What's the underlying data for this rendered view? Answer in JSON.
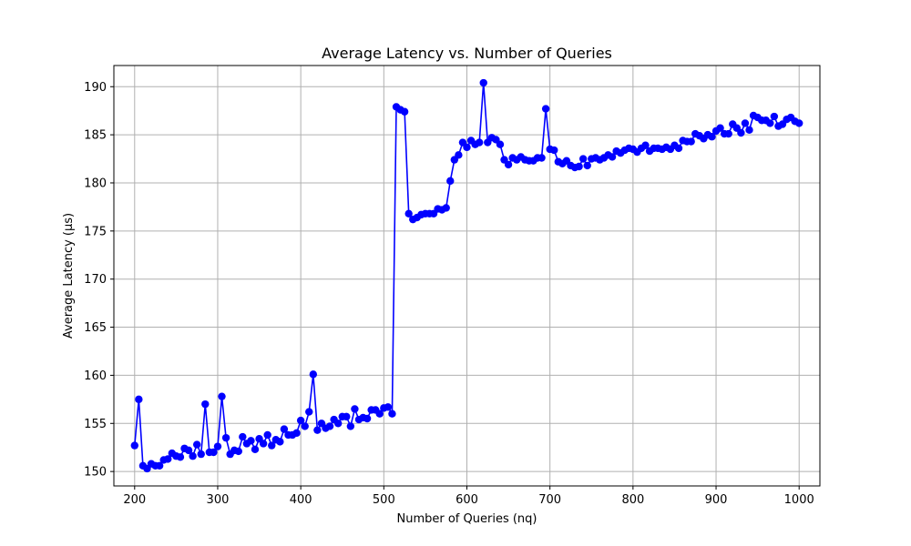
{
  "chart_data": {
    "type": "line",
    "title": "Average Latency vs. Number of Queries",
    "xlabel": "Number of Queries (nq)",
    "ylabel": "Average Latency (µs)",
    "xlim": [
      175,
      1025
    ],
    "ylim": [
      148.5,
      192.2
    ],
    "xticks": [
      200,
      300,
      400,
      500,
      600,
      700,
      800,
      900,
      1000
    ],
    "yticks": [
      150,
      155,
      160,
      165,
      170,
      175,
      180,
      185,
      190
    ],
    "grid": true,
    "series": [
      {
        "name": "Average Latency",
        "color": "#0000ff",
        "marker": "circle",
        "x": [
          200,
          205,
          210,
          215,
          220,
          225,
          230,
          235,
          240,
          245,
          250,
          255,
          260,
          265,
          270,
          275,
          280,
          285,
          290,
          295,
          300,
          305,
          310,
          315,
          320,
          325,
          330,
          335,
          340,
          345,
          350,
          355,
          360,
          365,
          370,
          375,
          380,
          385,
          390,
          395,
          400,
          405,
          410,
          415,
          420,
          425,
          430,
          435,
          440,
          445,
          450,
          455,
          460,
          465,
          470,
          475,
          480,
          485,
          490,
          495,
          500,
          505,
          510,
          515,
          520,
          525,
          530,
          535,
          540,
          545,
          550,
          555,
          560,
          565,
          570,
          575,
          580,
          585,
          590,
          595,
          600,
          605,
          610,
          615,
          620,
          625,
          630,
          635,
          640,
          645,
          650,
          655,
          660,
          665,
          670,
          675,
          680,
          685,
          690,
          695,
          700,
          705,
          710,
          715,
          720,
          725,
          730,
          735,
          740,
          745,
          750,
          755,
          760,
          765,
          770,
          775,
          780,
          785,
          790,
          795,
          800,
          805,
          810,
          815,
          820,
          825,
          830,
          835,
          840,
          845,
          850,
          855,
          860,
          865,
          870,
          875,
          880,
          885,
          890,
          895,
          900,
          905,
          910,
          915,
          920,
          925,
          930,
          935,
          940,
          945,
          950,
          955,
          960,
          965,
          970,
          975,
          980,
          985,
          990,
          995,
          1000
        ],
        "y": [
          152.7,
          157.5,
          150.6,
          150.3,
          150.8,
          150.6,
          150.6,
          151.2,
          151.3,
          151.9,
          151.6,
          151.5,
          152.4,
          152.2,
          151.6,
          152.8,
          151.8,
          157.0,
          152.0,
          152.0,
          152.6,
          157.8,
          153.5,
          151.8,
          152.2,
          152.1,
          153.6,
          152.9,
          153.2,
          152.3,
          153.4,
          152.9,
          153.8,
          152.7,
          153.3,
          153.1,
          154.4,
          153.8,
          153.8,
          154.0,
          155.3,
          154.7,
          156.2,
          160.1,
          154.3,
          155.0,
          154.5,
          154.7,
          155.4,
          155.0,
          155.7,
          155.7,
          154.7,
          156.5,
          155.4,
          155.6,
          155.5,
          156.4,
          156.4,
          156.0,
          156.6,
          156.7,
          156.0,
          187.9,
          187.6,
          187.4,
          176.8,
          176.2,
          176.4,
          176.7,
          176.8,
          176.8,
          176.8,
          177.3,
          177.2,
          177.4,
          180.2,
          182.4,
          182.9,
          184.2,
          183.7,
          184.4,
          184.0,
          184.2,
          190.4,
          184.2,
          184.7,
          184.5,
          184.0,
          182.4,
          181.9,
          182.6,
          182.4,
          182.7,
          182.4,
          182.3,
          182.3,
          182.6,
          182.6,
          187.7,
          183.5,
          183.4,
          182.2,
          182.0,
          182.3,
          181.8,
          181.6,
          181.7,
          182.5,
          181.8,
          182.5,
          182.6,
          182.4,
          182.6,
          182.9,
          182.7,
          183.3,
          183.1,
          183.4,
          183.6,
          183.5,
          183.2,
          183.6,
          183.9,
          183.3,
          183.6,
          183.6,
          183.5,
          183.7,
          183.5,
          183.9,
          183.6,
          184.4,
          184.3,
          184.3,
          185.1,
          184.9,
          184.6,
          185.0,
          184.8,
          185.4,
          185.7,
          185.1,
          185.1,
          186.1,
          185.7,
          185.2,
          186.2,
          185.5,
          187.0,
          186.8,
          186.5,
          186.5,
          186.2,
          186.9,
          185.9,
          186.1,
          186.6,
          186.8,
          186.4,
          186.2
        ]
      }
    ]
  }
}
